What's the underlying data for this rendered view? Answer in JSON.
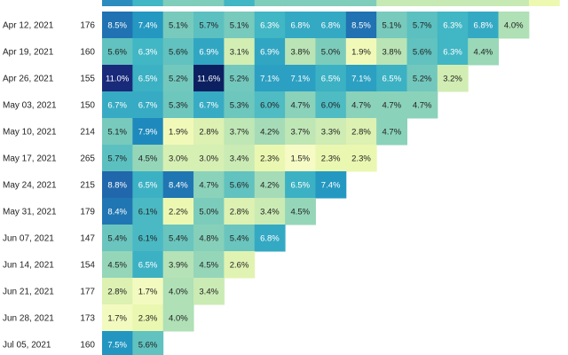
{
  "chart_data": {
    "type": "heatmap",
    "title": "",
    "xlabel": "",
    "ylabel": "",
    "top_row_colors": [
      "#2b8cbe",
      "#41b6c4",
      "#7fcdbb",
      "#7fcdbb",
      "#41b6c4",
      "#7fcdbb",
      "#7fcdbb",
      "#7fcdbb",
      "#7fcdbb",
      "#c7e9b4",
      "#c7e9b4",
      "#c7e9b4",
      "#c7e9b4",
      "#c7e9b4",
      "#edf8b1"
    ],
    "rows": [
      {
        "label": "Apr 12, 2021",
        "size": "176",
        "values": [
          "8.5%",
          "7.4%",
          "5.1%",
          "5.7%",
          "5.1%",
          "6.3%",
          "6.8%",
          "6.8%",
          "8.5%",
          "5.1%",
          "5.7%",
          "6.3%",
          "6.8%",
          "4.0%"
        ]
      },
      {
        "label": "Apr 19, 2021",
        "size": "160",
        "values": [
          "5.6%",
          "6.3%",
          "5.6%",
          "6.9%",
          "3.1%",
          "6.9%",
          "3.8%",
          "5.0%",
          "1.9%",
          "3.8%",
          "5.6%",
          "6.3%",
          "4.4%"
        ]
      },
      {
        "label": "Apr 26, 2021",
        "size": "155",
        "values": [
          "11.0%",
          "6.5%",
          "5.2%",
          "11.6%",
          "5.2%",
          "7.1%",
          "7.1%",
          "6.5%",
          "7.1%",
          "6.5%",
          "5.2%",
          "3.2%"
        ]
      },
      {
        "label": "May 03, 2021",
        "size": "150",
        "values": [
          "6.7%",
          "6.7%",
          "5.3%",
          "6.7%",
          "5.3%",
          "6.0%",
          "4.7%",
          "6.0%",
          "4.7%",
          "4.7%",
          "4.7%"
        ]
      },
      {
        "label": "May 10, 2021",
        "size": "214",
        "values": [
          "5.1%",
          "7.9%",
          "1.9%",
          "2.8%",
          "3.7%",
          "4.2%",
          "3.7%",
          "3.3%",
          "2.8%",
          "4.7%"
        ]
      },
      {
        "label": "May 17, 2021",
        "size": "265",
        "values": [
          "5.7%",
          "4.5%",
          "3.0%",
          "3.0%",
          "3.4%",
          "2.3%",
          "1.5%",
          "2.3%",
          "2.3%"
        ]
      },
      {
        "label": "May 24, 2021",
        "size": "215",
        "values": [
          "8.8%",
          "6.5%",
          "8.4%",
          "4.7%",
          "5.6%",
          "4.2%",
          "6.5%",
          "7.4%"
        ]
      },
      {
        "label": "May 31, 2021",
        "size": "179",
        "values": [
          "8.4%",
          "6.1%",
          "2.2%",
          "5.0%",
          "2.8%",
          "3.4%",
          "4.5%"
        ]
      },
      {
        "label": "Jun 07, 2021",
        "size": "147",
        "values": [
          "5.4%",
          "6.1%",
          "5.4%",
          "4.8%",
          "5.4%",
          "6.8%"
        ]
      },
      {
        "label": "Jun 14, 2021",
        "size": "154",
        "values": [
          "4.5%",
          "6.5%",
          "3.9%",
          "4.5%",
          "2.6%"
        ]
      },
      {
        "label": "Jun 21, 2021",
        "size": "177",
        "values": [
          "2.8%",
          "1.7%",
          "4.0%",
          "3.4%"
        ]
      },
      {
        "label": "Jun 28, 2021",
        "size": "173",
        "values": [
          "1.7%",
          "2.3%",
          "4.0%"
        ]
      },
      {
        "label": "Jul 05, 2021",
        "size": "160",
        "values": [
          "7.5%",
          "5.6%"
        ]
      }
    ]
  }
}
